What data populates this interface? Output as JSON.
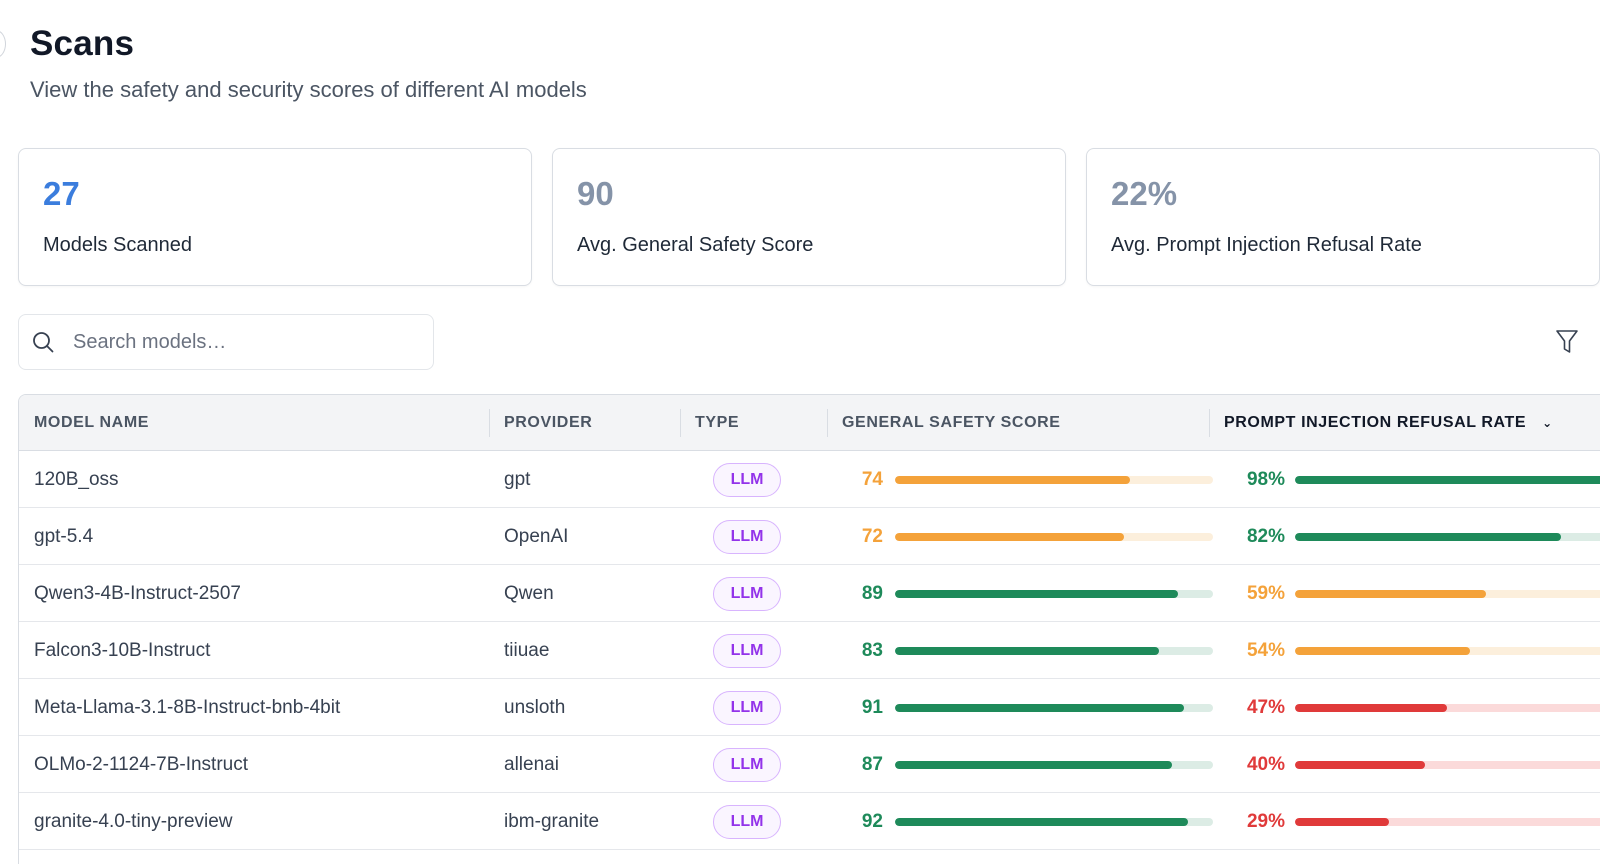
{
  "page": {
    "title": "Scans",
    "subtitle": "View the safety and security scores of different AI models"
  },
  "stats": [
    {
      "value": "27",
      "label": "Models Scanned",
      "color": "#3b7ddd"
    },
    {
      "value": "90",
      "label": "Avg. General Safety Score",
      "color": "#8593a8"
    },
    {
      "value": "22%",
      "label": "Avg. Prompt Injection Refusal Rate",
      "color": "#8593a8"
    }
  ],
  "search": {
    "placeholder": "Search models…",
    "icon": "search-icon"
  },
  "filter": {
    "icon": "filter-icon"
  },
  "table": {
    "columns": [
      "MODEL NAME",
      "PROVIDER",
      "TYPE",
      "GENERAL SAFETY SCORE",
      "PROMPT INJECTION REFUSAL RATE"
    ],
    "sorted_column": "PROMPT INJECTION REFUSAL RATE",
    "sort_direction": "descending",
    "rows": [
      {
        "model": "120B_oss",
        "provider": "gpt",
        "type": "LLM",
        "safety": "74",
        "safety_value": 74,
        "refusal": "98%",
        "refusal_value": 98
      },
      {
        "model": "gpt-5.4",
        "provider": "OpenAI",
        "type": "LLM",
        "safety": "72",
        "safety_value": 72,
        "refusal": "82%",
        "refusal_value": 82
      },
      {
        "model": "Qwen3-4B-Instruct-2507",
        "provider": "Qwen",
        "type": "LLM",
        "safety": "89",
        "safety_value": 89,
        "refusal": "59%",
        "refusal_value": 59
      },
      {
        "model": "Falcon3-10B-Instruct",
        "provider": "tiiuae",
        "type": "LLM",
        "safety": "83",
        "safety_value": 83,
        "refusal": "54%",
        "refusal_value": 54
      },
      {
        "model": "Meta-Llama-3.1-8B-Instruct-bnb-4bit",
        "provider": "unsloth",
        "type": "LLM",
        "safety": "91",
        "safety_value": 91,
        "refusal": "47%",
        "refusal_value": 47
      },
      {
        "model": "OLMo-2-1124-7B-Instruct",
        "provider": "allenai",
        "type": "LLM",
        "safety": "87",
        "safety_value": 87,
        "refusal": "40%",
        "refusal_value": 40
      },
      {
        "model": "granite-4.0-tiny-preview",
        "provider": "ibm-granite",
        "type": "LLM",
        "safety": "92",
        "safety_value": 92,
        "refusal": "29%",
        "refusal_value": 29
      },
      {
        "model": "",
        "provider": "",
        "type": "",
        "safety": "",
        "safety_value": null,
        "refusal": "",
        "refusal_value": null
      }
    ]
  },
  "colors": {
    "green": "#1e8a5a",
    "green_track": "#dcece5",
    "orange": "#f4a23a",
    "orange_track": "#fcefdc",
    "red": "#e03a3a",
    "red_track": "#fbdada"
  }
}
